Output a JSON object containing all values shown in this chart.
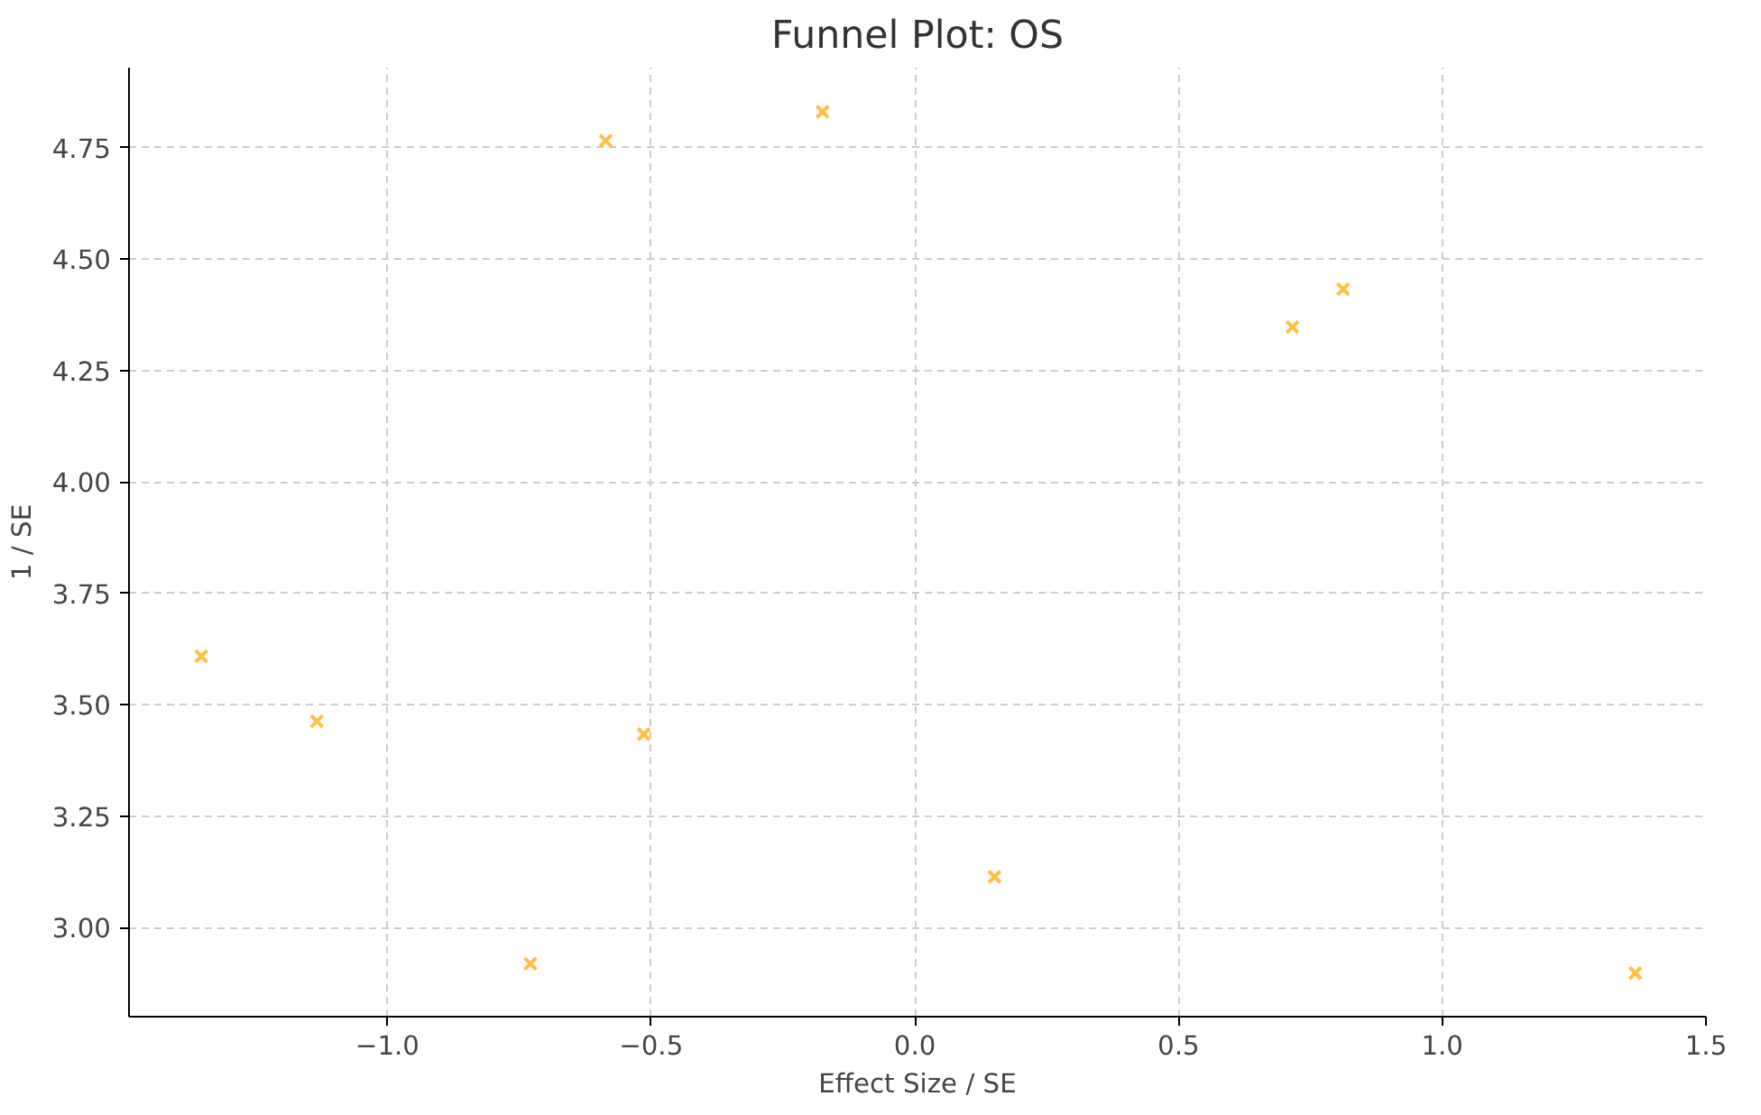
{
  "chart_data": {
    "type": "scatter",
    "title": "Funnel Plot: OS",
    "xlabel": "Effect Size / SE",
    "ylabel": "1 / SE",
    "x": [
      -1.353,
      -1.134,
      -0.729,
      -0.586,
      -0.514,
      -0.175,
      0.151,
      0.716,
      0.812,
      1.366
    ],
    "series": [
      {
        "color": "#ffbf40",
        "values": [
          3.609,
          3.463,
          2.919,
          4.766,
          3.434,
          4.831,
          3.114,
          4.348,
          4.433,
          2.898
        ]
      }
    ],
    "marker": "cross",
    "xlim": [
      -1.49,
      1.5
    ],
    "ylim": [
      2.8,
      4.93
    ],
    "xticks": [
      {
        "value": -1.0,
        "label": "−1.0"
      },
      {
        "value": -0.5,
        "label": "−0.5"
      },
      {
        "value": 0.0,
        "label": "0.0"
      },
      {
        "value": 0.5,
        "label": "0.5"
      },
      {
        "value": 1.0,
        "label": "1.0"
      },
      {
        "value": 1.5,
        "label": "1.5"
      }
    ],
    "yticks": [
      {
        "value": 3.0,
        "label": "3.00"
      },
      {
        "value": 3.25,
        "label": "3.25"
      },
      {
        "value": 3.5,
        "label": "3.50"
      },
      {
        "value": 3.75,
        "label": "3.75"
      },
      {
        "value": 4.0,
        "label": "4.00"
      },
      {
        "value": 4.25,
        "label": "4.25"
      },
      {
        "value": 4.5,
        "label": "4.50"
      },
      {
        "value": 4.75,
        "label": "4.75"
      }
    ],
    "grid": true
  }
}
